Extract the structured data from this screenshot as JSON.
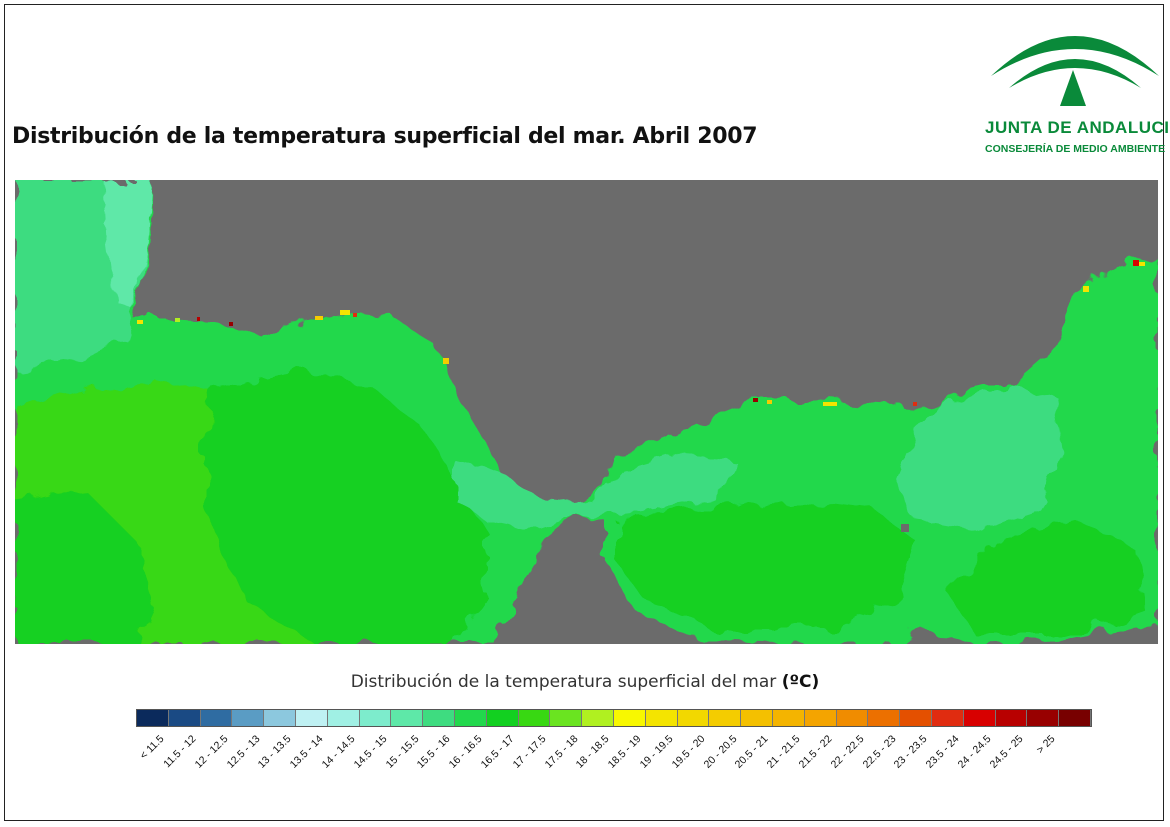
{
  "title": "Distribución de la temperatura superficial del mar. Abril 2007",
  "logo": {
    "main": "JUNTA DE ANDALUCIA",
    "sub": "CONSEJERÍA DE MEDIO AMBIENTE",
    "color": "#0a8a3a"
  },
  "map": {
    "land_color": "#6b6b6b",
    "sea_colors": {
      "15_15.5": "#5ee8a8",
      "15.5_16": "#3edc80",
      "16_16.5": "#22d84c",
      "16.5_17": "#12d020",
      "17_17.5": "#38d812"
    }
  },
  "legend": {
    "title": "Distribución de la temperatura superficial del mar",
    "unit": "(ºC)",
    "classes": [
      {
        "label": "< 11.5",
        "color": "#0b2a5c"
      },
      {
        "label": "11.5 - 12",
        "color": "#1a4a84"
      },
      {
        "label": "12 - 12.5",
        "color": "#2f6ca2"
      },
      {
        "label": "12.5 - 13",
        "color": "#5a9cc4"
      },
      {
        "label": "13 - 13.5",
        "color": "#8cc8de"
      },
      {
        "label": "13.5 - 14",
        "color": "#bff1f3"
      },
      {
        "label": "14 - 14.5",
        "color": "#a0f0e4"
      },
      {
        "label": "14.5 - 15",
        "color": "#7deccc"
      },
      {
        "label": "15 - 15.5",
        "color": "#5ee8a8"
      },
      {
        "label": "15.5 - 16",
        "color": "#3edc80"
      },
      {
        "label": "16 - 16.5",
        "color": "#22d84c"
      },
      {
        "label": "16.5 - 17",
        "color": "#12d020"
      },
      {
        "label": "17 - 17.5",
        "color": "#38d812"
      },
      {
        "label": "17.5 - 18",
        "color": "#6ae420"
      },
      {
        "label": "18 - 18.5",
        "color": "#b0f020"
      },
      {
        "label": "18.5 - 19",
        "color": "#f8f800"
      },
      {
        "label": "19 - 19.5",
        "color": "#f4e400"
      },
      {
        "label": "19.5 - 20",
        "color": "#f2d800"
      },
      {
        "label": "20 - 20.5",
        "color": "#f4cc00"
      },
      {
        "label": "20.5 - 21",
        "color": "#f4c000"
      },
      {
        "label": "21 - 21.5",
        "color": "#f4b400"
      },
      {
        "label": "21.5 - 22",
        "color": "#f4a400"
      },
      {
        "label": "22 - 22.5",
        "color": "#f08c00"
      },
      {
        "label": "22.5 - 23",
        "color": "#ec7000"
      },
      {
        "label": "23 - 23.5",
        "color": "#e45000"
      },
      {
        "label": "23.5 - 24",
        "color": "#e02c10"
      },
      {
        "label": "24 - 24.5",
        "color": "#d80000"
      },
      {
        "label": "24.5 - 25",
        "color": "#b80000"
      },
      {
        "label": "> 25",
        "color": "#980000"
      },
      {
        "label": "",
        "color": "#780000"
      }
    ]
  }
}
